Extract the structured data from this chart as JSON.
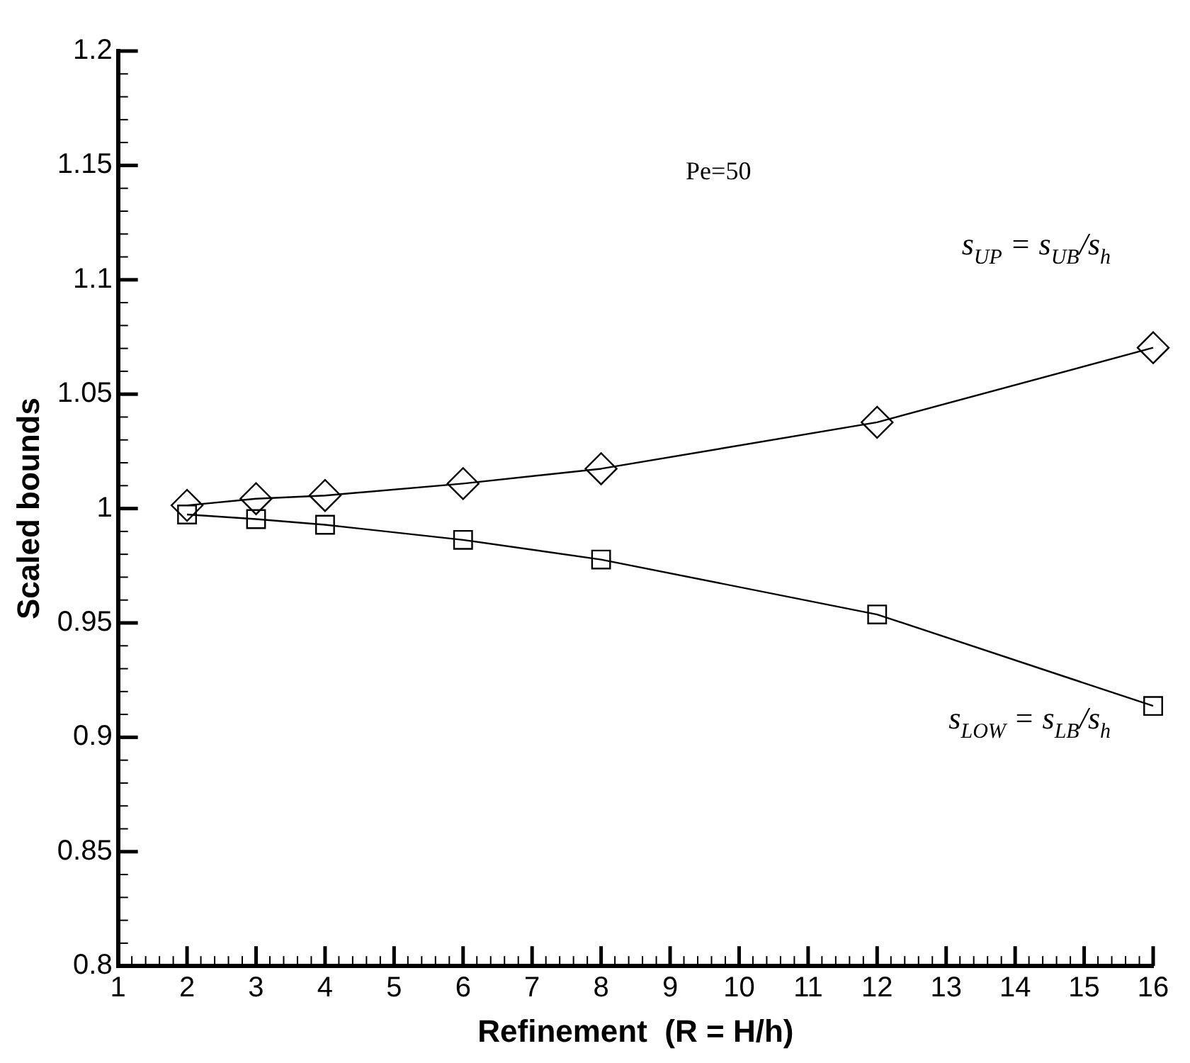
{
  "chart_data": {
    "type": "line",
    "xlabel": "Refinement  (R = H/h)",
    "ylabel": "Scaled bounds",
    "annotations": [
      "Pe=50"
    ],
    "series": [
      {
        "name": "s$_{UP}$ = s$_{UB}$/s$_{h}$",
        "color": "#000000",
        "marker": "diamond",
        "x": [
          2,
          3,
          4,
          6,
          8,
          12,
          16
        ],
        "values": [
          1.0014,
          1.0043,
          1.0057,
          1.0109,
          1.0174,
          1.0377,
          1.0703
        ]
      },
      {
        "name": "s$_{LOW}$ = s$_{LB}$/s$_{h}$",
        "color": "#000000",
        "marker": "square",
        "x": [
          2,
          3,
          4,
          6,
          8,
          12,
          16
        ],
        "values": [
          0.9974,
          0.9954,
          0.9929,
          0.9863,
          0.9777,
          0.9537,
          0.9137
        ]
      }
    ],
    "xlim": [
      1,
      16
    ],
    "xticks": [
      1,
      {
        "value": 1.2,
        "label": null
      },
      {
        "value": 1.4,
        "label": null
      },
      {
        "value": 1.6,
        "label": null
      },
      {
        "value": 1.8,
        "label": null
      },
      2,
      {
        "value": 2.2,
        "label": null
      },
      {
        "value": 2.4,
        "label": null
      },
      {
        "value": 2.6,
        "label": null
      },
      {
        "value": 2.8,
        "label": null
      },
      3,
      {
        "value": 3.2,
        "label": null
      },
      {
        "value": 3.4,
        "label": null
      },
      {
        "value": 3.6,
        "label": null
      },
      {
        "value": 3.8,
        "label": null
      },
      4,
      {
        "value": 4.2,
        "label": null
      },
      {
        "value": 4.4,
        "label": null
      },
      {
        "value": 4.6,
        "label": null
      },
      {
        "value": 4.8,
        "label": null
      },
      5,
      {
        "value": 5.2,
        "label": null
      },
      {
        "value": 5.4,
        "label": null
      },
      {
        "value": 5.6,
        "label": null
      },
      {
        "value": 5.8,
        "label": null
      },
      6,
      {
        "value": 6.2,
        "label": null
      },
      {
        "value": 6.4,
        "label": null
      },
      {
        "value": 6.6,
        "label": null
      },
      {
        "value": 6.8,
        "label": null
      },
      7,
      {
        "value": 7.2,
        "label": null
      },
      {
        "value": 7.4,
        "label": null
      },
      {
        "value": 7.6,
        "label": null
      },
      {
        "value": 7.8,
        "label": null
      },
      8,
      {
        "value": 8.2,
        "label": null
      },
      {
        "value": 8.4,
        "label": null
      },
      {
        "value": 8.6,
        "label": null
      },
      {
        "value": 8.8,
        "label": null
      },
      9,
      {
        "value": 9.2,
        "label": null
      },
      {
        "value": 9.4,
        "label": null
      },
      {
        "value": 9.6,
        "label": null
      },
      {
        "value": 9.8,
        "label": null
      },
      10,
      {
        "value": 10.2,
        "label": null
      },
      {
        "value": 10.4,
        "label": null
      },
      {
        "value": 10.6,
        "label": null
      },
      {
        "value": 10.8,
        "label": null
      },
      11,
      {
        "value": 11.2,
        "label": null
      },
      {
        "value": 11.4,
        "label": null
      },
      {
        "value": 11.6,
        "label": null
      },
      {
        "value": 11.8,
        "label": null
      },
      12,
      {
        "value": 12.2,
        "label": null
      },
      {
        "value": 12.4,
        "label": null
      },
      {
        "value": 12.6,
        "label": null
      },
      {
        "value": 12.8,
        "label": null
      },
      13,
      {
        "value": 13.2,
        "label": null
      },
      {
        "value": 13.4,
        "label": null
      },
      {
        "value": 13.6,
        "label": null
      },
      {
        "value": 13.8,
        "label": null
      },
      14,
      {
        "value": 14.2,
        "label": null
      },
      {
        "value": 14.4,
        "label": null
      },
      {
        "value": 14.6,
        "label": null
      },
      {
        "value": 14.8,
        "label": null
      },
      15,
      {
        "value": 15.2,
        "label": null
      },
      {
        "value": 15.4,
        "label": null
      },
      {
        "value": 15.6,
        "label": null
      },
      {
        "value": 15.8,
        "label": null
      },
      16
    ],
    "ylim": [
      0.8,
      1.2
    ],
    "yticks": [
      0.8,
      {
        "value": 0.81,
        "label": null
      },
      {
        "value": 0.82,
        "label": null
      },
      {
        "value": 0.83,
        "label": null
      },
      {
        "value": 0.84,
        "label": null
      },
      0.85,
      {
        "value": 0.86,
        "label": null
      },
      {
        "value": 0.87,
        "label": null
      },
      {
        "value": 0.88,
        "label": null
      },
      {
        "value": 0.89,
        "label": null
      },
      0.9,
      {
        "value": 0.91,
        "label": null
      },
      {
        "value": 0.92,
        "label": null
      },
      {
        "value": 0.93,
        "label": null
      },
      {
        "value": 0.94,
        "label": null
      },
      0.95,
      {
        "value": 0.96,
        "label": null
      },
      {
        "value": 0.97,
        "label": null
      },
      {
        "value": 0.98,
        "label": null
      },
      {
        "value": 0.99,
        "label": null
      },
      1,
      {
        "value": 1.01,
        "label": null
      },
      {
        "value": 1.02,
        "label": null
      },
      {
        "value": 1.03,
        "label": null
      },
      {
        "value": 1.04,
        "label": null
      },
      1.05,
      {
        "value": 1.06,
        "label": null
      },
      {
        "value": 1.07,
        "label": null
      },
      {
        "value": 1.08,
        "label": null
      },
      {
        "value": 1.09,
        "label": null
      },
      1.1,
      {
        "value": 1.11,
        "label": null
      },
      {
        "value": 1.12,
        "label": null
      },
      {
        "value": 1.13,
        "label": null
      },
      {
        "value": 1.14,
        "label": null
      },
      1.15,
      {
        "value": 1.16,
        "label": null
      },
      {
        "value": 1.17,
        "label": null
      },
      {
        "value": 1.18,
        "label": null
      },
      {
        "value": 1.19,
        "label": null
      },
      1.2
    ],
    "grid": false,
    "legend": false,
    "line_style": "solid"
  }
}
